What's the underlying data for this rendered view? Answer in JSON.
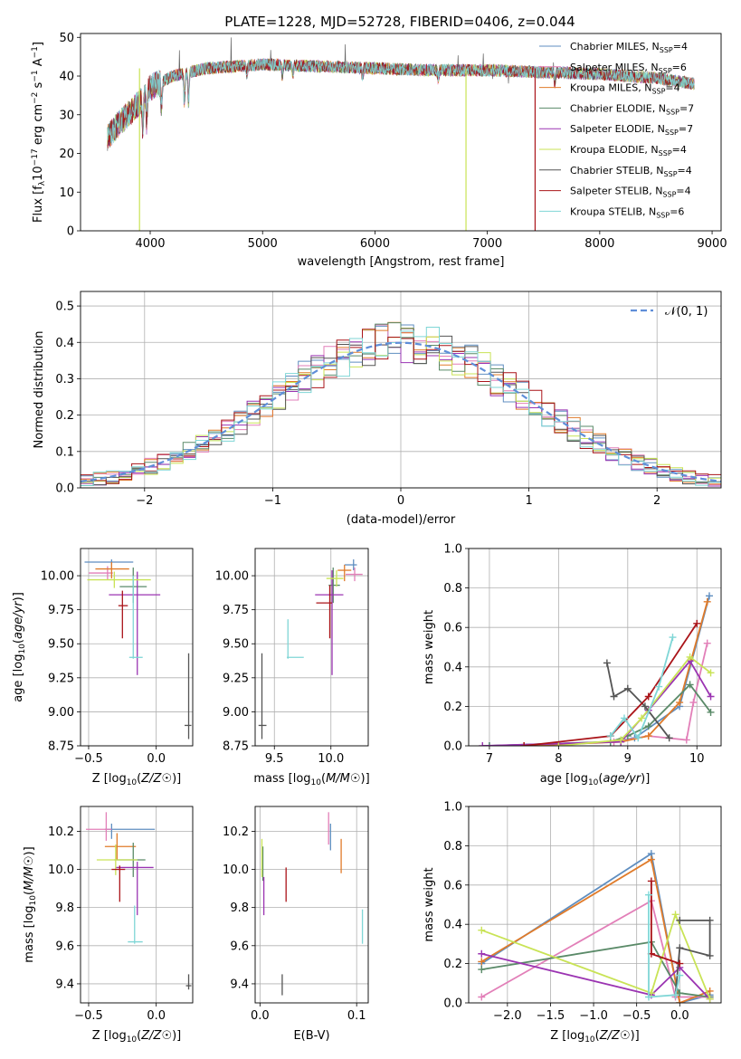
{
  "figure_title": "PLATE=1228, MJD=52728, FIBERID=0406, z=0.044",
  "colors": {
    "Chabrier MILES": "#5f8ec0",
    "Salpeter MILES": "#e27fb8",
    "Kroupa MILES": "#e07b2a",
    "Chabrier ELODIE": "#5a8a68",
    "Salpeter ELODIE": "#9b34b2",
    "Kroupa ELODIE": "#c9e356",
    "Chabrier STELIB": "#555555",
    "Salpeter STELIB": "#aa1419",
    "Kroupa STELIB": "#7fd6d6"
  },
  "chart_data": [
    {
      "id": "spectrum",
      "type": "line",
      "title": "PLATE=1228, MJD=52728, FIBERID=0406, z=0.044",
      "xlabel": "wavelength [Angstrom, rest frame]",
      "ylabel": "Flux [f_λ 10^-17 erg cm^-2 s^-1 A^-1]",
      "xlim": [
        3380,
        9080
      ],
      "ylim": [
        0,
        51
      ],
      "xticks": [
        "4000",
        "5000",
        "6000",
        "7000",
        "8000",
        "9000"
      ],
      "yticks": [
        "0",
        "10",
        "20",
        "30",
        "40",
        "50"
      ],
      "grid": false,
      "legend_position": "top-right",
      "legend": [
        {
          "model": "Chabrier MILES",
          "nssp": "4"
        },
        {
          "model": "Salpeter MILES",
          "nssp": "6"
        },
        {
          "model": "Kroupa MILES",
          "nssp": "4"
        },
        {
          "model": "Chabrier ELODIE",
          "nssp": "7"
        },
        {
          "model": "Salpeter ELODIE",
          "nssp": "7"
        },
        {
          "model": "Kroupa ELODIE",
          "nssp": "4"
        },
        {
          "model": "Chabrier STELIB",
          "nssp": "4"
        },
        {
          "model": "Salpeter STELIB",
          "nssp": "4"
        },
        {
          "model": "Kroupa STELIB",
          "nssp": "6"
        }
      ],
      "continuum": {
        "x": [
          3620,
          3700,
          3800,
          3900,
          4000,
          4200,
          4500,
          5000,
          5500,
          6000,
          6500,
          7000,
          7500,
          8000,
          8500,
          8840
        ],
        "y": [
          24,
          27,
          30,
          33,
          37,
          40,
          42,
          43,
          42.5,
          42,
          41.5,
          41.5,
          41,
          40.5,
          39.5,
          38
        ]
      },
      "dips": [
        {
          "x": 3905,
          "y": 0,
          "series": "Kroupa ELODIE"
        },
        {
          "x": 6810,
          "y": 0,
          "series": "Kroupa ELODIE"
        },
        {
          "x": 7425,
          "y": 0,
          "series": "Salpeter STELIB"
        }
      ]
    },
    {
      "id": "residuals",
      "type": "histogram",
      "xlabel": "(data-model)/error",
      "ylabel": "Normed distribution",
      "xlim": [
        -2.5,
        2.5
      ],
      "ylim": [
        0,
        0.54
      ],
      "xticks": [
        "−2",
        "−1",
        "0",
        "1",
        "2"
      ],
      "yticks": [
        "0.0",
        "0.1",
        "0.2",
        "0.3",
        "0.4",
        "0.5"
      ],
      "grid": true,
      "legend_position": "top-right",
      "reference_curve": "𝒩(0, 1)",
      "bins": 50,
      "max_bin_value": 0.51
    },
    {
      "id": "age-vs-Z",
      "type": "errorbar",
      "xlabel": "Z [log10(Z/Z☉)]",
      "ylabel": "age [log10(age/yr)]",
      "xlim": [
        -0.56,
        0.27
      ],
      "ylim": [
        8.75,
        10.2
      ],
      "xticks": [
        "−0.5",
        "0.0"
      ],
      "yticks": [
        "8.75",
        "9.00",
        "9.25",
        "9.50",
        "9.75",
        "10.00"
      ],
      "grid": true,
      "points": [
        {
          "series": "Chabrier MILES",
          "x": -0.33,
          "xerr": [
            0.2,
            0.16
          ],
          "y": 10.1,
          "yerr": [
            0.05,
            0.02
          ]
        },
        {
          "series": "Salpeter MILES",
          "x": -0.36,
          "xerr": [
            0.14,
            0.04
          ],
          "y": 10.02,
          "yerr": [
            0.05,
            0.05
          ]
        },
        {
          "series": "Kroupa MILES",
          "x": -0.33,
          "xerr": [
            0.12,
            0.13
          ],
          "y": 10.05,
          "yerr": [
            0.07,
            0.05
          ]
        },
        {
          "series": "Chabrier ELODIE",
          "x": -0.17,
          "xerr": [
            0.1,
            0.1
          ],
          "y": 9.92,
          "yerr": [
            0.12,
            0.14
          ]
        },
        {
          "series": "Salpeter ELODIE",
          "x": -0.14,
          "xerr": [
            0.21,
            0.17
          ],
          "y": 9.86,
          "yerr": [
            0.59,
            0.17
          ]
        },
        {
          "series": "Kroupa ELODIE",
          "x": -0.31,
          "xerr": [
            0.2,
            0.27
          ],
          "y": 9.97,
          "yerr": [
            0.06,
            0.06
          ]
        },
        {
          "series": "Chabrier STELIB",
          "x": 0.24,
          "xerr": [
            0.03,
            0.02
          ],
          "y": 8.9,
          "yerr": [
            0.1,
            0.53
          ]
        },
        {
          "series": "Salpeter STELIB",
          "x": -0.25,
          "xerr": [
            0.03,
            0.04
          ],
          "y": 9.78,
          "yerr": [
            0.24,
            0.11
          ]
        },
        {
          "series": "Kroupa STELIB",
          "x": -0.17,
          "xerr": [
            0.03,
            0.07
          ],
          "y": 9.4,
          "yerr": [
            0.01,
            0.6
          ]
        }
      ]
    },
    {
      "id": "age-vs-mass",
      "type": "errorbar",
      "xlabel": "mass [log10(M/M☉)]",
      "ylabel": "",
      "xlim": [
        9.33,
        10.33
      ],
      "ylim": [
        8.75,
        10.2
      ],
      "xticks": [
        "9.5",
        "10.0"
      ],
      "yticks": [
        "8.75",
        "9.00",
        "9.25",
        "9.50",
        "9.75",
        "10.00"
      ],
      "grid": true,
      "points": [
        {
          "series": "Chabrier MILES",
          "x": 10.2,
          "xerr": [
            0.08,
            0.03
          ],
          "y": 10.08,
          "yerr": [
            0.04,
            0.04
          ]
        },
        {
          "series": "Salpeter MILES",
          "x": 10.21,
          "xerr": [
            0.08,
            0.07
          ],
          "y": 10.01,
          "yerr": [
            0.05,
            0.05
          ]
        },
        {
          "series": "Kroupa MILES",
          "x": 10.12,
          "xerr": [
            0.06,
            0.06
          ],
          "y": 10.04,
          "yerr": [
            0.08,
            0.04
          ]
        },
        {
          "series": "Chabrier ELODIE",
          "x": 10.02,
          "xerr": [
            0.04,
            0.06
          ],
          "y": 9.93,
          "yerr": [
            0.13,
            0.13
          ]
        },
        {
          "series": "Salpeter ELODIE",
          "x": 10.01,
          "xerr": [
            0.15,
            0.1
          ],
          "y": 9.86,
          "yerr": [
            0.59,
            0.18
          ]
        },
        {
          "series": "Kroupa ELODIE",
          "x": 10.05,
          "xerr": [
            0.09,
            0.06
          ],
          "y": 9.98,
          "yerr": [
            0.06,
            0.06
          ]
        },
        {
          "series": "Chabrier STELIB",
          "x": 9.39,
          "xerr": [
            0.03,
            0.04
          ],
          "y": 8.9,
          "yerr": [
            0.1,
            0.53
          ]
        },
        {
          "series": "Salpeter STELIB",
          "x": 9.99,
          "xerr": [
            0.12,
            0.02
          ],
          "y": 9.8,
          "yerr": [
            0.26,
            0.13
          ]
        },
        {
          "series": "Kroupa STELIB",
          "x": 9.62,
          "xerr": [
            0.01,
            0.14
          ],
          "y": 9.4,
          "yerr": [
            0.01,
            0.28
          ]
        }
      ]
    },
    {
      "id": "mass-weight-vs-age",
      "type": "line",
      "xlabel": "age [log10(age/yr)]",
      "ylabel": "mass weight",
      "xlim": [
        6.7,
        10.35
      ],
      "ylim": [
        0,
        1
      ],
      "xticks": [
        "7",
        "8",
        "9",
        "10"
      ],
      "yticks": [
        "0.0",
        "0.2",
        "0.4",
        "0.6",
        "0.8",
        "1.0"
      ],
      "grid": true,
      "series": [
        {
          "name": "Chabrier MILES",
          "x": [
            7.0,
            8.75,
            9.1,
            9.75,
            10.18
          ],
          "y": [
            0.0,
            0.02,
            0.04,
            0.2,
            0.76
          ]
        },
        {
          "name": "Salpeter MILES",
          "x": [
            7.5,
            8.8,
            9.3,
            9.85,
            9.95,
            10.15
          ],
          "y": [
            0.0,
            0.02,
            0.05,
            0.03,
            0.22,
            0.52
          ]
        },
        {
          "name": "Kroupa MILES",
          "x": [
            7.5,
            8.9,
            9.3,
            9.75,
            10.15
          ],
          "y": [
            0.0,
            0.02,
            0.05,
            0.22,
            0.73
          ]
        },
        {
          "name": "Chabrier ELODIE",
          "x": [
            7.0,
            8.75,
            9.0,
            9.3,
            9.9,
            10.2
          ],
          "y": [
            0.0,
            0.02,
            0.05,
            0.1,
            0.31,
            0.17
          ]
        },
        {
          "name": "Salpeter ELODIE",
          "x": [
            6.9,
            8.9,
            9.3,
            9.9,
            10.2
          ],
          "y": [
            0.0,
            0.02,
            0.18,
            0.43,
            0.25
          ]
        },
        {
          "name": "Kroupa ELODIE",
          "x": [
            8.0,
            8.9,
            9.2,
            9.9,
            10.2
          ],
          "y": [
            0.0,
            0.03,
            0.14,
            0.45,
            0.37
          ]
        },
        {
          "name": "Chabrier STELIB",
          "x": [
            8.7,
            8.8,
            9.0,
            9.25,
            9.6
          ],
          "y": [
            0.42,
            0.25,
            0.29,
            0.2,
            0.04
          ]
        },
        {
          "name": "Salpeter STELIB",
          "x": [
            7.5,
            8.75,
            9.3,
            10.0
          ],
          "y": [
            0.0,
            0.05,
            0.25,
            0.62
          ]
        },
        {
          "name": "Kroupa STELIB",
          "x": [
            8.75,
            8.95,
            9.15,
            9.45,
            9.65
          ],
          "y": [
            0.05,
            0.14,
            0.04,
            0.3,
            0.55
          ]
        }
      ]
    },
    {
      "id": "mass-vs-Z",
      "type": "errorbar",
      "xlabel": "Z [log10(Z/Z☉)]",
      "ylabel": "mass [log10(M/M☉)]",
      "xlim": [
        -0.56,
        0.27
      ],
      "ylim": [
        9.3,
        10.33
      ],
      "xticks": [
        "−0.5",
        "0.0"
      ],
      "yticks": [
        "9.4",
        "9.6",
        "9.8",
        "10.0",
        "10.2"
      ],
      "grid": true,
      "points": [
        {
          "series": "Chabrier MILES",
          "x": -0.33,
          "xerr": [
            0.05,
            0.32
          ],
          "y": 10.21,
          "yerr": [
            0.05,
            0.03
          ]
        },
        {
          "series": "Salpeter MILES",
          "x": -0.37,
          "xerr": [
            0.15,
            0.04
          ],
          "y": 10.21,
          "yerr": [
            0.06,
            0.09
          ]
        },
        {
          "series": "Kroupa MILES",
          "x": -0.29,
          "xerr": [
            0.09,
            0.14
          ],
          "y": 10.12,
          "yerr": [
            0.07,
            0.07
          ]
        },
        {
          "series": "Chabrier ELODIE",
          "x": -0.17,
          "xerr": [
            0.14,
            0.09
          ],
          "y": 10.05,
          "yerr": [
            0.09,
            0.09
          ]
        },
        {
          "series": "Salpeter ELODIE",
          "x": -0.14,
          "xerr": [
            0.16,
            0.12
          ],
          "y": 10.01,
          "yerr": [
            0.25,
            0.03
          ]
        },
        {
          "series": "Kroupa ELODIE",
          "x": -0.3,
          "xerr": [
            0.14,
            0.16
          ],
          "y": 10.05,
          "yerr": [
            0.08,
            0.08
          ]
        },
        {
          "series": "Chabrier STELIB",
          "x": 0.24,
          "xerr": [
            0.02,
            0.02
          ],
          "y": 9.39,
          "yerr": [
            0.02,
            0.06
          ]
        },
        {
          "series": "Salpeter STELIB",
          "x": -0.27,
          "xerr": [
            0.06,
            0.04
          ],
          "y": 10.0,
          "yerr": [
            0.17,
            0.02
          ]
        },
        {
          "series": "Kroupa STELIB",
          "x": -0.16,
          "xerr": [
            0.05,
            0.06
          ],
          "y": 9.62,
          "yerr": [
            0.01,
            0.19
          ]
        }
      ]
    },
    {
      "id": "mass-vs-EBV",
      "type": "errorbar",
      "xlabel": "E(B-V)",
      "ylabel": "",
      "xlim": [
        -0.005,
        0.112
      ],
      "ylim": [
        9.3,
        10.33
      ],
      "xticks": [
        "0.0",
        "0.1"
      ],
      "yticks": [
        "9.4",
        "9.6",
        "9.8",
        "10.0",
        "10.2"
      ],
      "grid": true,
      "points": [
        {
          "series": "Chabrier MILES",
          "x": 0.073,
          "y": 10.21,
          "yerr": [
            0.11,
            0.03
          ]
        },
        {
          "series": "Salpeter MILES",
          "x": 0.071,
          "y": 10.21,
          "yerr": [
            0.08,
            0.09
          ]
        },
        {
          "series": "Kroupa MILES",
          "x": 0.084,
          "y": 10.07,
          "yerr": [
            0.09,
            0.09
          ]
        },
        {
          "series": "Chabrier ELODIE",
          "x": 0.003,
          "y": 10.05,
          "yerr": [
            0.11,
            0.07
          ]
        },
        {
          "series": "Salpeter ELODIE",
          "x": 0.004,
          "y": 9.86,
          "yerr": [
            0.1,
            0.1
          ]
        },
        {
          "series": "Kroupa ELODIE",
          "x": 0.002,
          "y": 10.05,
          "yerr": [
            0.09,
            0.11
          ]
        },
        {
          "series": "Chabrier STELIB",
          "x": 0.023,
          "y": 9.39,
          "yerr": [
            0.05,
            0.06
          ]
        },
        {
          "series": "Salpeter STELIB",
          "x": 0.027,
          "y": 9.92,
          "yerr": [
            0.09,
            0.09
          ]
        },
        {
          "series": "Kroupa STELIB",
          "x": 0.106,
          "y": 9.7,
          "yerr": [
            0.09,
            0.09
          ]
        }
      ]
    },
    {
      "id": "mass-weight-vs-Z",
      "type": "line",
      "xlabel": "Z [log10(Z/Z☉)]",
      "ylabel": "mass weight",
      "xlim": [
        -2.45,
        0.48
      ],
      "ylim": [
        0,
        1
      ],
      "xticks": [
        "−2.0",
        "−1.5",
        "−1.0",
        "−0.5",
        "0.0"
      ],
      "yticks": [
        "0.0",
        "0.2",
        "0.4",
        "0.6",
        "0.8",
        "1.0"
      ],
      "grid": true,
      "series": [
        {
          "name": "Chabrier MILES",
          "x": [
            -2.3,
            -0.33,
            0.0,
            0.35
          ],
          "y": [
            0.2,
            0.76,
            0.0,
            0.04
          ]
        },
        {
          "name": "Salpeter MILES",
          "x": [
            -2.3,
            -0.33,
            -0.05,
            0.35
          ],
          "y": [
            0.03,
            0.52,
            0.03,
            0.03
          ]
        },
        {
          "name": "Kroupa MILES",
          "x": [
            -2.3,
            -0.33,
            0.0,
            0.35
          ],
          "y": [
            0.21,
            0.73,
            0.0,
            0.06
          ]
        },
        {
          "name": "Chabrier ELODIE",
          "x": [
            -2.3,
            -0.33,
            0.0,
            0.35
          ],
          "y": [
            0.17,
            0.31,
            0.05,
            0.03
          ]
        },
        {
          "name": "Salpeter ELODIE",
          "x": [
            -2.3,
            -0.33,
            0.0,
            0.35
          ],
          "y": [
            0.25,
            0.04,
            0.18,
            0.02
          ]
        },
        {
          "name": "Kroupa ELODIE",
          "x": [
            -2.3,
            -0.33,
            -0.05,
            0.35
          ],
          "y": [
            0.37,
            0.05,
            0.45,
            0.02
          ]
        },
        {
          "name": "Chabrier STELIB",
          "x": [
            0.0,
            0.35,
            0.35,
            0.0,
            -0.05
          ],
          "y": [
            0.42,
            0.42,
            0.24,
            0.28,
            0.04
          ]
        },
        {
          "name": "Salpeter STELIB",
          "x": [
            -0.33,
            -0.33,
            0.0
          ],
          "y": [
            0.62,
            0.25,
            0.2
          ]
        },
        {
          "name": "Kroupa STELIB",
          "x": [
            -0.36,
            -0.36,
            -0.05,
            0.0
          ],
          "y": [
            0.55,
            0.03,
            0.04,
            0.14
          ]
        }
      ]
    }
  ]
}
